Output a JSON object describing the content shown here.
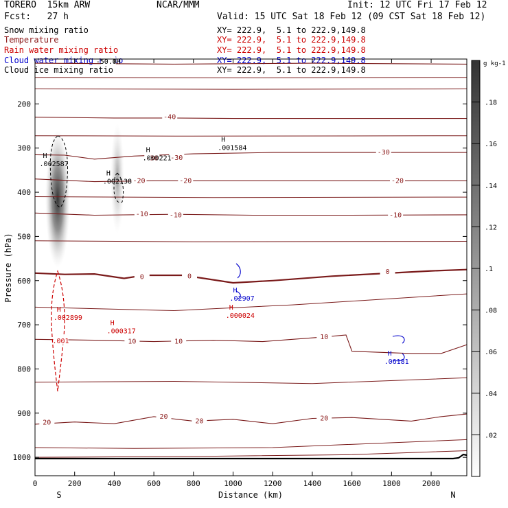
{
  "header": {
    "model": "TORERO  15km ARW",
    "org": "NCAR/MMM",
    "init": "Init: 12 UTC Fri 17 Feb 12",
    "fcst": "Fcst:   27 h",
    "valid": "Valid: 15 UTC Sat 18 Feb 12 (09 CST Sat 18 Feb 12)"
  },
  "legend": [
    {
      "label": "Snow mixing ratio",
      "color": "#000000",
      "xy": "XY= 222.9,  5.1 to 222.9,149.8",
      "xy_color": "#000000"
    },
    {
      "label": "Temperature",
      "color": "#8b1a1a",
      "xy": "XY= 222.9,  5.1 to 222.9,149.8",
      "xy_color": "#cc0000"
    },
    {
      "label": "Rain water mixing ratio",
      "color": "#cc0000",
      "xy": "XY= 222.9,  5.1 to 222.9,149.8",
      "xy_color": "#cc0000"
    },
    {
      "label": "Cloud water mixing ratio",
      "color": "#0000cc",
      "xy": "XY= 222.9,  5.1 to 222.9,149.8",
      "xy_color": "#0000cc"
    },
    {
      "label": "Cloud ice mixing ratio",
      "color": "#000000",
      "xy": "XY= 222.9,  5.1 to 222.9,149.8",
      "xy_color": "#000000"
    }
  ],
  "chart_data": {
    "type": "cross-section",
    "xlabel": "Distance (km)",
    "ylabel": "Pressure (hPa)",
    "xlim": [
      0,
      2180
    ],
    "ylim": [
      1050,
      100
    ],
    "x_ticks": [
      0,
      200,
      400,
      600,
      800,
      1000,
      1200,
      1400,
      1600,
      1800,
      2000
    ],
    "y_ticks": [
      200,
      300,
      400,
      500,
      600,
      700,
      800,
      900,
      1000
    ],
    "endpoints": {
      "left": "S",
      "right": "N"
    },
    "colorbar": {
      "unit": "g kg-1",
      "min": 0,
      "max": 0.2,
      "ticks": [
        0.02,
        0.04,
        0.06,
        0.08,
        0.1,
        0.12,
        0.14,
        0.16,
        0.18
      ],
      "tick_labels": [
        ".02",
        ".04",
        ".06",
        ".08",
        ".1",
        ".12",
        ".14",
        ".16",
        ".18"
      ]
    },
    "temperature_contours": [
      {
        "value": -50,
        "points": [
          [
            0,
            108
          ],
          [
            700,
            110
          ],
          [
            1400,
            108
          ],
          [
            2180,
            110
          ]
        ]
      },
      {
        "value": -40,
        "points": [
          [
            0,
            230
          ],
          [
            400,
            232
          ],
          [
            700,
            232
          ],
          [
            1000,
            233
          ],
          [
            1500,
            233
          ],
          [
            2180,
            233
          ]
        ]
      },
      {
        "value": -30,
        "points": [
          [
            0,
            315
          ],
          [
            150,
            316
          ],
          [
            300,
            325
          ],
          [
            500,
            318
          ],
          [
            800,
            313
          ],
          [
            1200,
            310
          ],
          [
            1600,
            310
          ],
          [
            2180,
            310
          ]
        ]
      },
      {
        "value": -20,
        "points": [
          [
            0,
            370
          ],
          [
            300,
            376
          ],
          [
            600,
            374
          ],
          [
            1000,
            374
          ],
          [
            1500,
            374
          ],
          [
            2180,
            374
          ]
        ]
      },
      {
        "value": -10,
        "points": [
          [
            0,
            447
          ],
          [
            300,
            452
          ],
          [
            700,
            450
          ],
          [
            1100,
            452
          ],
          [
            1600,
            452
          ],
          [
            2180,
            451
          ]
        ]
      },
      {
        "value": 0,
        "points": [
          [
            0,
            583
          ],
          [
            150,
            586
          ],
          [
            300,
            585
          ],
          [
            450,
            595
          ],
          [
            550,
            588
          ],
          [
            750,
            588
          ],
          [
            1000,
            605
          ],
          [
            1200,
            600
          ],
          [
            1500,
            590
          ],
          [
            2000,
            578
          ],
          [
            2180,
            575
          ]
        ]
      },
      {
        "value": 10,
        "points": [
          [
            0,
            733
          ],
          [
            300,
            735
          ],
          [
            600,
            738
          ],
          [
            900,
            735
          ],
          [
            1150,
            738
          ],
          [
            1450,
            728
          ],
          [
            1570,
            723
          ],
          [
            1600,
            760
          ],
          [
            1900,
            765
          ],
          [
            2050,
            765
          ],
          [
            2180,
            745
          ]
        ]
      },
      {
        "value": 20,
        "points": [
          [
            0,
            925
          ],
          [
            200,
            920
          ],
          [
            400,
            924
          ],
          [
            600,
            908
          ],
          [
            800,
            918
          ],
          [
            1000,
            914
          ],
          [
            1200,
            924
          ],
          [
            1400,
            912
          ],
          [
            1600,
            910
          ],
          [
            1900,
            918
          ],
          [
            2050,
            908
          ],
          [
            2180,
            902
          ]
        ]
      }
    ],
    "maxima": [
      {
        "field": "snow",
        "label": "H",
        "value": ".002587",
        "x": 40,
        "p": 322
      },
      {
        "field": "snow",
        "label": "H",
        "value": ".002138",
        "x": 360,
        "p": 362
      },
      {
        "field": "cloud ice",
        "label": "H",
        "value": ".000221",
        "x": 560,
        "p": 309
      },
      {
        "field": "cloud ice",
        "label": "H",
        "value": ".001584",
        "x": 940,
        "p": 286
      },
      {
        "field": "rain",
        "label": "H",
        "value": ".002899",
        "x": 110,
        "p": 670
      },
      {
        "field": "rain",
        "label": "H",
        "value": ".000317",
        "x": 380,
        "p": 701
      },
      {
        "field": "rain",
        "label": "H",
        "value": ".000024",
        "x": 980,
        "p": 666
      },
      {
        "field": "cloud water",
        "label": "H",
        "value": ".02907",
        "x": 1000,
        "p": 627
      },
      {
        "field": "cloud water",
        "label": "H",
        "value": ".06181",
        "x": 1780,
        "p": 770
      }
    ],
    "contour_labels": [
      {
        "text": "-50.0H",
        "x": 370,
        "p": 105,
        "color": "#000000"
      },
      {
        "text": "-40",
        "x": 680,
        "p": 230,
        "color": "#8b1a1a"
      },
      {
        "text": "-30",
        "x": 590,
        "p": 323,
        "color": "#8b1a1a"
      },
      {
        "text": "-30",
        "x": 715,
        "p": 322,
        "color": "#8b1a1a"
      },
      {
        "text": "-30",
        "x": 1760,
        "p": 310,
        "color": "#8b1a1a"
      },
      {
        "text": "-20",
        "x": 525,
        "p": 374,
        "color": "#8b1a1a"
      },
      {
        "text": "-20",
        "x": 760,
        "p": 374,
        "color": "#8b1a1a"
      },
      {
        "text": "-20",
        "x": 1830,
        "p": 374,
        "color": "#8b1a1a"
      },
      {
        "text": "-10",
        "x": 540,
        "p": 450,
        "color": "#8b1a1a"
      },
      {
        "text": "-10",
        "x": 710,
        "p": 452,
        "color": "#8b1a1a"
      },
      {
        "text": "-10",
        "x": 1820,
        "p": 452,
        "color": "#8b1a1a"
      },
      {
        "text": "0",
        "x": 540,
        "p": 592,
        "color": "#8b1a1a"
      },
      {
        "text": "0",
        "x": 780,
        "p": 590,
        "color": "#8b1a1a"
      },
      {
        "text": "0",
        "x": 1780,
        "p": 580,
        "color": "#8b1a1a"
      },
      {
        "text": "10",
        "x": 490,
        "p": 738,
        "color": "#8b1a1a"
      },
      {
        "text": "10",
        "x": 725,
        "p": 738,
        "color": "#8b1a1a"
      },
      {
        "text": "10",
        "x": 1460,
        "p": 728,
        "color": "#8b1a1a"
      },
      {
        "text": "20",
        "x": 60,
        "p": 921,
        "color": "#8b1a1a"
      },
      {
        "text": "20",
        "x": 650,
        "p": 908,
        "color": "#8b1a1a"
      },
      {
        "text": "20",
        "x": 830,
        "p": 918,
        "color": "#8b1a1a"
      },
      {
        "text": "20",
        "x": 1460,
        "p": 912,
        "color": "#8b1a1a"
      },
      {
        "text": ".001",
        "x": 130,
        "p": 737,
        "color": "#cc0000"
      }
    ]
  }
}
